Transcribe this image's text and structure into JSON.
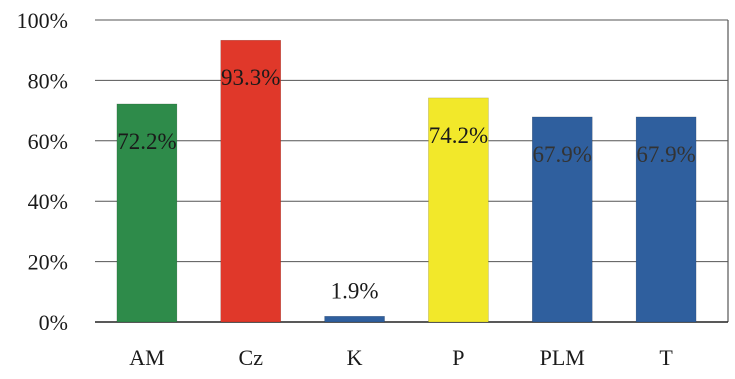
{
  "chart_data": {
    "type": "bar",
    "categories": [
      "AM",
      "Cz",
      "K",
      "P",
      "PLM",
      "T"
    ],
    "values": [
      72.2,
      93.3,
      1.9,
      74.2,
      67.9,
      67.9
    ],
    "data_labels": [
      "72.2%",
      "93.3%",
      "1.9%",
      "74.2%",
      "67.9%",
      "67.9%"
    ],
    "bar_colors": [
      "#2e8b4a",
      "#e0382a",
      "#2f5f9e",
      "#f2e82a",
      "#2f5f9e",
      "#2f5f9e"
    ],
    "data_label_colors": [
      "#1a1a1a",
      "#1a1a1a",
      "#1a1a1a",
      "#1a1a1a",
      "#333333",
      "#333333"
    ],
    "y_ticks": [
      0,
      20,
      40,
      60,
      80,
      100
    ],
    "y_tick_labels": [
      "0%",
      "20%",
      "40%",
      "60%",
      "80%",
      "100%"
    ],
    "ylim": [
      0,
      100
    ],
    "grid": true,
    "legend": "none",
    "title": "",
    "xlabel": "",
    "ylabel": ""
  }
}
